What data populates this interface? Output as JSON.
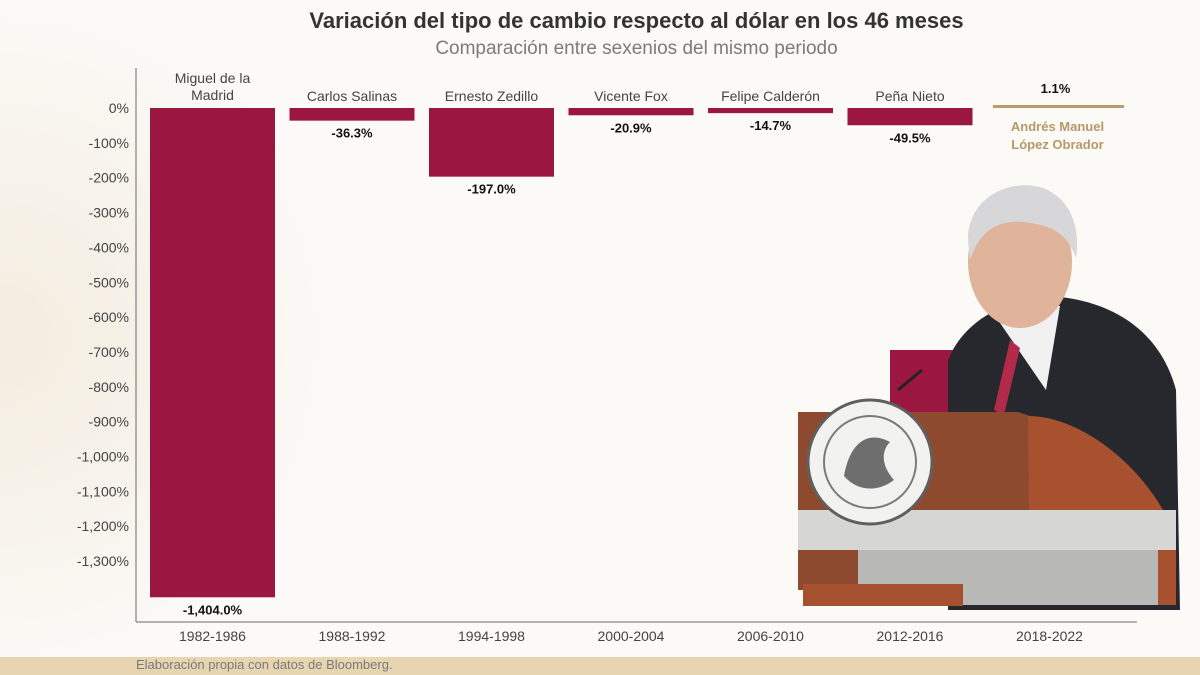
{
  "chart_data": {
    "type": "bar",
    "title": "Variación del tipo de cambio respecto al dólar en los 46 meses",
    "subtitle": "Comparación entre sexenios del mismo periodo",
    "categories": [
      "1982-1986",
      "1988-1992",
      "1994-1998",
      "2000-2004",
      "2006-2010",
      "2012-2016",
      "2018-2022"
    ],
    "presidents": [
      [
        "Miguel de la",
        "Madrid"
      ],
      [
        "Carlos Salinas"
      ],
      [
        "Ernesto Zedillo"
      ],
      [
        "Vicente Fox"
      ],
      [
        "Felipe Calderón"
      ],
      [
        "Peña Nieto"
      ],
      [
        "Andrés Manuel",
        "López Obrador"
      ]
    ],
    "values": [
      -1404.0,
      -36.3,
      -197.0,
      -20.9,
      -14.7,
      -49.5,
      1.1
    ],
    "value_labels": [
      "-1,404.0%",
      "-36.3%",
      "-197.0%",
      "-20.9%",
      "-14.7%",
      "-49.5%",
      "1.1%"
    ],
    "yticks": [
      "0%",
      "-100%",
      "-200%",
      "-300%",
      "-400%",
      "-500%",
      "-600%",
      "-700%",
      "-800%",
      "-900%",
      "-1,000%",
      "-1,100%",
      "-1,200%",
      "-1,300%"
    ],
    "ylim": [
      -1450,
      0
    ],
    "grid": false,
    "colors": {
      "bar": "#9b1640",
      "highlight": "#bc9b6a",
      "highlight_text": "#b8976a"
    }
  },
  "footer": {
    "source": "Elaboración propia con datos de Bloomberg."
  }
}
